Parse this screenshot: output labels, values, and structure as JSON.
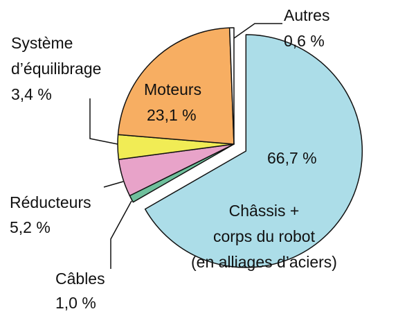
{
  "chart_data": {
    "type": "pie",
    "categories": [
      "Châssis +\ncorps du robot\n(en alliages d’aciers)",
      "Câbles",
      "Réducteurs",
      "Système\nd’équilibrage",
      "Moteurs",
      "Autres"
    ],
    "values": [
      66.7,
      1.0,
      5.2,
      3.4,
      23.1,
      0.6
    ],
    "value_labels": [
      "66,7 %",
      "1,0 %",
      "5,2 %",
      "3,4 %",
      "23,1 %",
      "0,6 %"
    ],
    "colors": [
      "#acdde8",
      "#6fc09c",
      "#e8a3c9",
      "#f1ec55",
      "#f7ae62",
      "#ffffff"
    ],
    "exploded": [
      0
    ]
  }
}
